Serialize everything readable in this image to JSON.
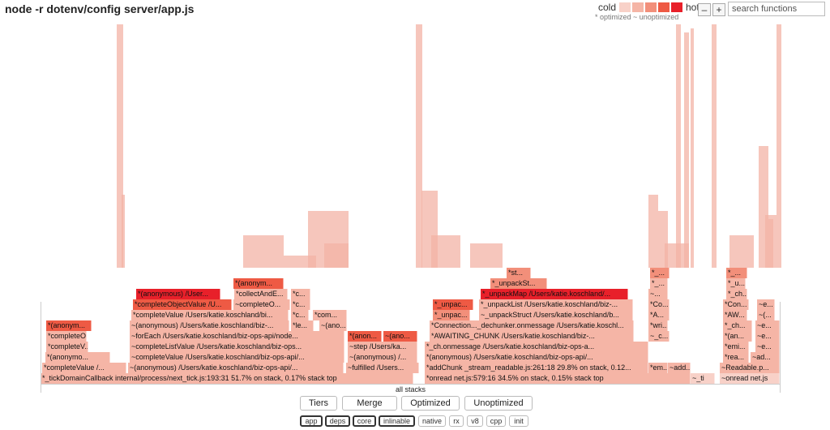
{
  "title": "node -r dotenv/config server/app.js",
  "legend": {
    "cold_label": "cold",
    "hot_label": "hot",
    "note": "* optimized ~ unoptimized",
    "swatch_colors": [
      "#f8d1c8",
      "#f5b5a6",
      "#f28f7a",
      "#ee5a44",
      "#e8202a"
    ]
  },
  "zoom": {
    "minus": "–",
    "plus": "+"
  },
  "search": {
    "placeholder": "search functions"
  },
  "all_stacks_label": "all stacks",
  "buttons": [
    "Tiers",
    "Merge",
    "Optimized",
    "Unoptimized"
  ],
  "tags": [
    {
      "label": "app",
      "on": true
    },
    {
      "label": "deps",
      "on": true
    },
    {
      "label": "core",
      "on": true
    },
    {
      "label": "inlinable",
      "on": true
    },
    {
      "label": "native",
      "on": false
    },
    {
      "label": "rx",
      "on": false
    },
    {
      "label": "v8",
      "on": false
    },
    {
      "label": "cpp",
      "on": false
    },
    {
      "label": "init",
      "on": false
    }
  ],
  "frames": [
    {
      "label": "*_tickDomainCallback internal/process/next_tick.js:193:31 51.7% on stack, 0.17% stack top",
      "heat": 1
    },
    {
      "label": "*onread net.js:579:16 34.5% on stack, 0.15% stack top",
      "heat": 1
    },
    {
      "label": "~_ti",
      "heat": 0
    },
    {
      "label": "~onread net.js",
      "heat": 0
    },
    {
      "label": "*completeValue /...",
      "heat": 1
    },
    {
      "label": "~(anonymous) /Users/katie.koschland/biz-ops-api/...",
      "heat": 1
    },
    {
      "label": "~fulfilled /Users...",
      "heat": 1
    },
    {
      "label": "*addChunk _stream_readable.js:261:18 29.8% on stack, 0.12...",
      "heat": 1
    },
    {
      "label": "*em...",
      "heat": 1
    },
    {
      "label": "~add...",
      "heat": 1
    },
    {
      "label": "~Readable.p...",
      "heat": 1
    },
    {
      "label": "*(anonymo...",
      "heat": 1
    },
    {
      "label": "~completeValue /Users/katie.koschland/biz-ops-api/...",
      "heat": 1
    },
    {
      "label": "~(anonymous) /...",
      "heat": 1
    },
    {
      "label": "*(anonymous) /Users/katie.koschland/biz-ops-api/...",
      "heat": 1
    },
    {
      "label": "*rea...",
      "heat": 1
    },
    {
      "label": "~ad...",
      "heat": 1
    },
    {
      "label": "*completeV...",
      "heat": 1
    },
    {
      "label": "~completeListValue /Users/katie.koschland/biz-ops...",
      "heat": 1
    },
    {
      "label": "~step /Users/ka...",
      "heat": 1
    },
    {
      "label": "*_ch.onmessage /Users/katie.koschland/biz-ops-a...",
      "heat": 1
    },
    {
      "label": "*emi...",
      "heat": 1
    },
    {
      "label": "~e...",
      "heat": 1
    },
    {
      "label": "*completeO...",
      "heat": 1
    },
    {
      "label": "~forEach /Users/katie.koschland/biz-ops-api/node...",
      "heat": 1
    },
    {
      "label": "*(anon...",
      "heat": 3
    },
    {
      "label": "~(ano...",
      "heat": 3
    },
    {
      "label": "*AWAITING_CHUNK /Users/katie.koschland/biz-...",
      "heat": 1
    },
    {
      "label": "~_c...",
      "heat": 1
    },
    {
      "label": "*(an...",
      "heat": 1
    },
    {
      "label": "~e...",
      "heat": 1
    },
    {
      "label": "*(anonym...",
      "heat": 3
    },
    {
      "label": "~(anonymous) /Users/katie.koschland/biz-...",
      "heat": 1
    },
    {
      "label": "*le...",
      "heat": 1
    },
    {
      "label": "~(ano...",
      "heat": 1
    },
    {
      "label": "*Connection..._dechunker.onmessage /Users/katie.koschl...",
      "heat": 1
    },
    {
      "label": "*wri...",
      "heat": 1
    },
    {
      "label": "*_ch...",
      "heat": 1
    },
    {
      "label": "~e...",
      "heat": 1
    },
    {
      "label": "*completeValue /Users/katie.koschland/bi...",
      "heat": 1
    },
    {
      "label": "*c...",
      "heat": 1
    },
    {
      "label": "*com...",
      "heat": 1
    },
    {
      "label": "*_unpac...",
      "heat": 2
    },
    {
      "label": "~_unpackStruct /Users/katie.koschland/b...",
      "heat": 1
    },
    {
      "label": "*A...",
      "heat": 1
    },
    {
      "label": "*AW...",
      "heat": 1
    },
    {
      "label": "~(...",
      "heat": 1
    },
    {
      "label": "*completeObjectValue /U...",
      "heat": 3
    },
    {
      "label": "~completeO...",
      "heat": 1
    },
    {
      "label": "*c...",
      "heat": 1
    },
    {
      "label": "*_unpac...",
      "heat": 3
    },
    {
      "label": "*_unpackList /Users/katie.koschland/biz-...",
      "heat": 1
    },
    {
      "label": "*Co...",
      "heat": 1
    },
    {
      "label": "*Con...",
      "heat": 1
    },
    {
      "label": "~e...",
      "heat": 1
    },
    {
      "label": "*(anonymous) /User...",
      "heat": 4
    },
    {
      "label": "*collectAndE...",
      "heat": 1
    },
    {
      "label": "*c...",
      "heat": 1
    },
    {
      "label": "*_unpackMap /Users/katie.koschland/...",
      "heat": 4
    },
    {
      "label": "~...",
      "heat": 1
    },
    {
      "label": "*_ch...",
      "heat": 1
    },
    {
      "label": "*(anonym...",
      "heat": 3
    },
    {
      "label": "*_unpackSt...",
      "heat": 2
    },
    {
      "label": "*_...",
      "heat": 1
    },
    {
      "label": "*_u...",
      "heat": 1
    },
    {
      "label": "*st...",
      "heat": 2
    },
    {
      "label": "*_...",
      "heat": 2
    },
    {
      "label": "*_...",
      "heat": 2
    }
  ]
}
